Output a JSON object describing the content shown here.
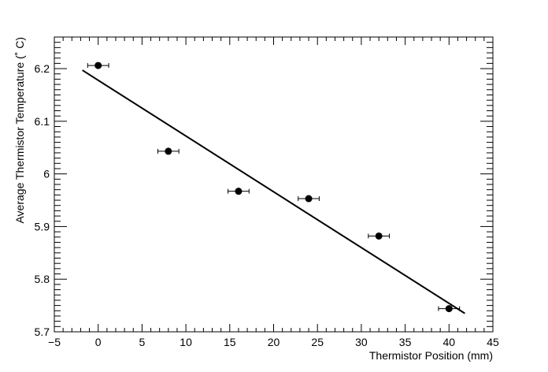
{
  "chart_data": {
    "type": "scatter",
    "title": "",
    "xlabel": "Thermistor Position (mm)",
    "ylabel": "Average Thermistor Temperature (˚ C)",
    "xlim": [
      -5,
      45
    ],
    "ylim": [
      5.7,
      6.26
    ],
    "x_ticks": [
      -5,
      0,
      5,
      10,
      15,
      20,
      25,
      30,
      35,
      40,
      45
    ],
    "y_ticks": [
      5.7,
      5.8,
      5.9,
      6,
      6.1,
      6.2
    ],
    "x_tick_labels": [
      "−5",
      "0",
      "5",
      "10",
      "15",
      "20",
      "25",
      "30",
      "35",
      "40",
      "45"
    ],
    "y_tick_labels": [
      "5.7",
      "5.8",
      "5.9",
      "6",
      "6.1",
      "6.2"
    ],
    "grid": false,
    "legend": "none",
    "series": [
      {
        "kind": "points",
        "x": [
          0,
          8,
          16,
          24,
          32,
          40
        ],
        "y": [
          6.206,
          6.043,
          5.967,
          5.953,
          5.882,
          5.744
        ],
        "x_err": [
          1.2,
          1.2,
          1.2,
          1.2,
          1.2,
          1.2
        ],
        "color": "#000000"
      },
      {
        "kind": "fit-line",
        "x": [
          -1.8,
          41.8
        ],
        "y": [
          6.197,
          5.735
        ],
        "color": "#000000"
      }
    ]
  }
}
